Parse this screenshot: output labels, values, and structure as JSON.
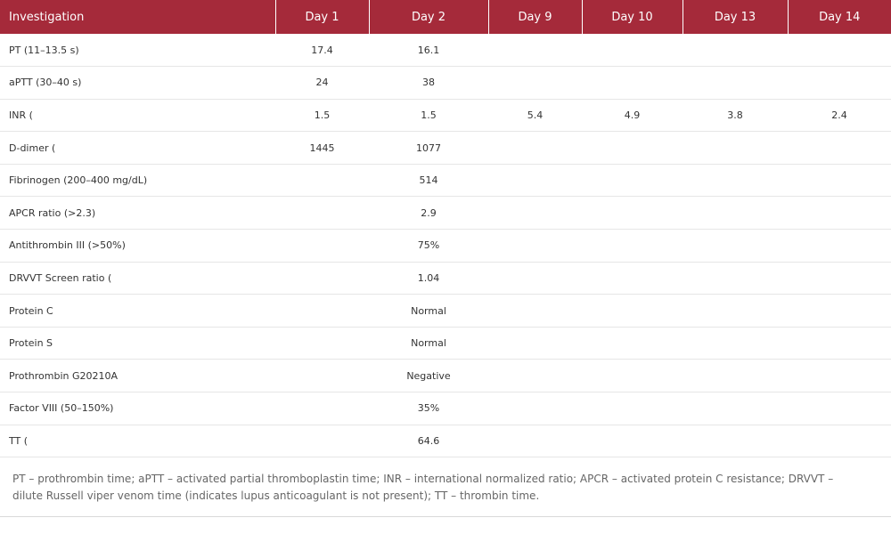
{
  "table": {
    "headers": [
      "Investigation",
      "Day 1",
      "Day 2",
      "Day 9",
      "Day 10",
      "Day 13",
      "Day 14"
    ],
    "rows": [
      [
        "PT (11–13.5 s)",
        "17.4",
        "16.1",
        "",
        "",
        "",
        ""
      ],
      [
        "aPTT (30–40 s)",
        "24",
        "38",
        "",
        "",
        "",
        ""
      ],
      [
        "INR (",
        "1.5",
        "1.5",
        "5.4",
        "4.9",
        "3.8",
        "2.4"
      ],
      [
        "D-dimer (",
        "1445",
        "1077",
        "",
        "",
        "",
        ""
      ],
      [
        "Fibrinogen (200–400 mg/dL)",
        "",
        "514",
        "",
        "",
        "",
        ""
      ],
      [
        "APCR ratio (>2.3)",
        "",
        "2.9",
        "",
        "",
        "",
        ""
      ],
      [
        "Antithrombin III (>50%)",
        "",
        "75%",
        "",
        "",
        "",
        ""
      ],
      [
        "DRVVT Screen ratio (",
        "",
        "1.04",
        "",
        "",
        "",
        ""
      ],
      [
        "Protein C",
        "",
        "Normal",
        "",
        "",
        "",
        ""
      ],
      [
        "Protein S",
        "",
        "Normal",
        "",
        "",
        "",
        ""
      ],
      [
        "Prothrombin G20210A",
        "",
        "Negative",
        "",
        "",
        "",
        ""
      ],
      [
        "Factor VIII (50–150%)",
        "",
        "35%",
        "",
        "",
        "",
        ""
      ],
      [
        "TT (",
        "",
        "64.6",
        "",
        "",
        "",
        ""
      ]
    ]
  },
  "footnote": "PT – prothrombin time; aPTT – activated partial thromboplastin time; INR – international normalized ratio; APCR – activated protein C resistance; DRVVT – dilute Russell viper venom time (indicates lupus anticoagulant is not present); TT – thrombin time.",
  "colors": {
    "header_bg": "#a52a3a",
    "header_text": "#ffffff",
    "row_border": "#e6e6e6"
  }
}
